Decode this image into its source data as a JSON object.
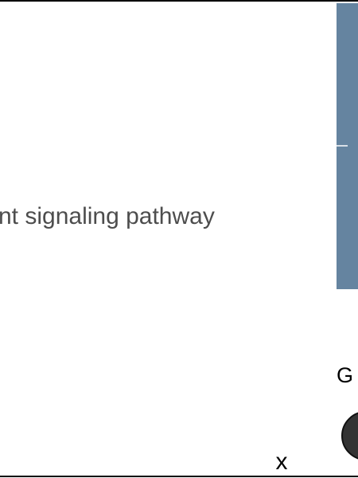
{
  "chart_data": {
    "type": "bar",
    "orientation": "horizontal",
    "categories": [
      "Wnt signaling pathway"
    ],
    "series": [
      {
        "values": [
          null
        ],
        "color": "#6584a0"
      }
    ],
    "xlabel": "x",
    "visible_category_text": "nt signaling pathway",
    "legend": {
      "title_visible_text": "G",
      "placement": "right",
      "marker_color": "#333333"
    },
    "grid": false
  }
}
